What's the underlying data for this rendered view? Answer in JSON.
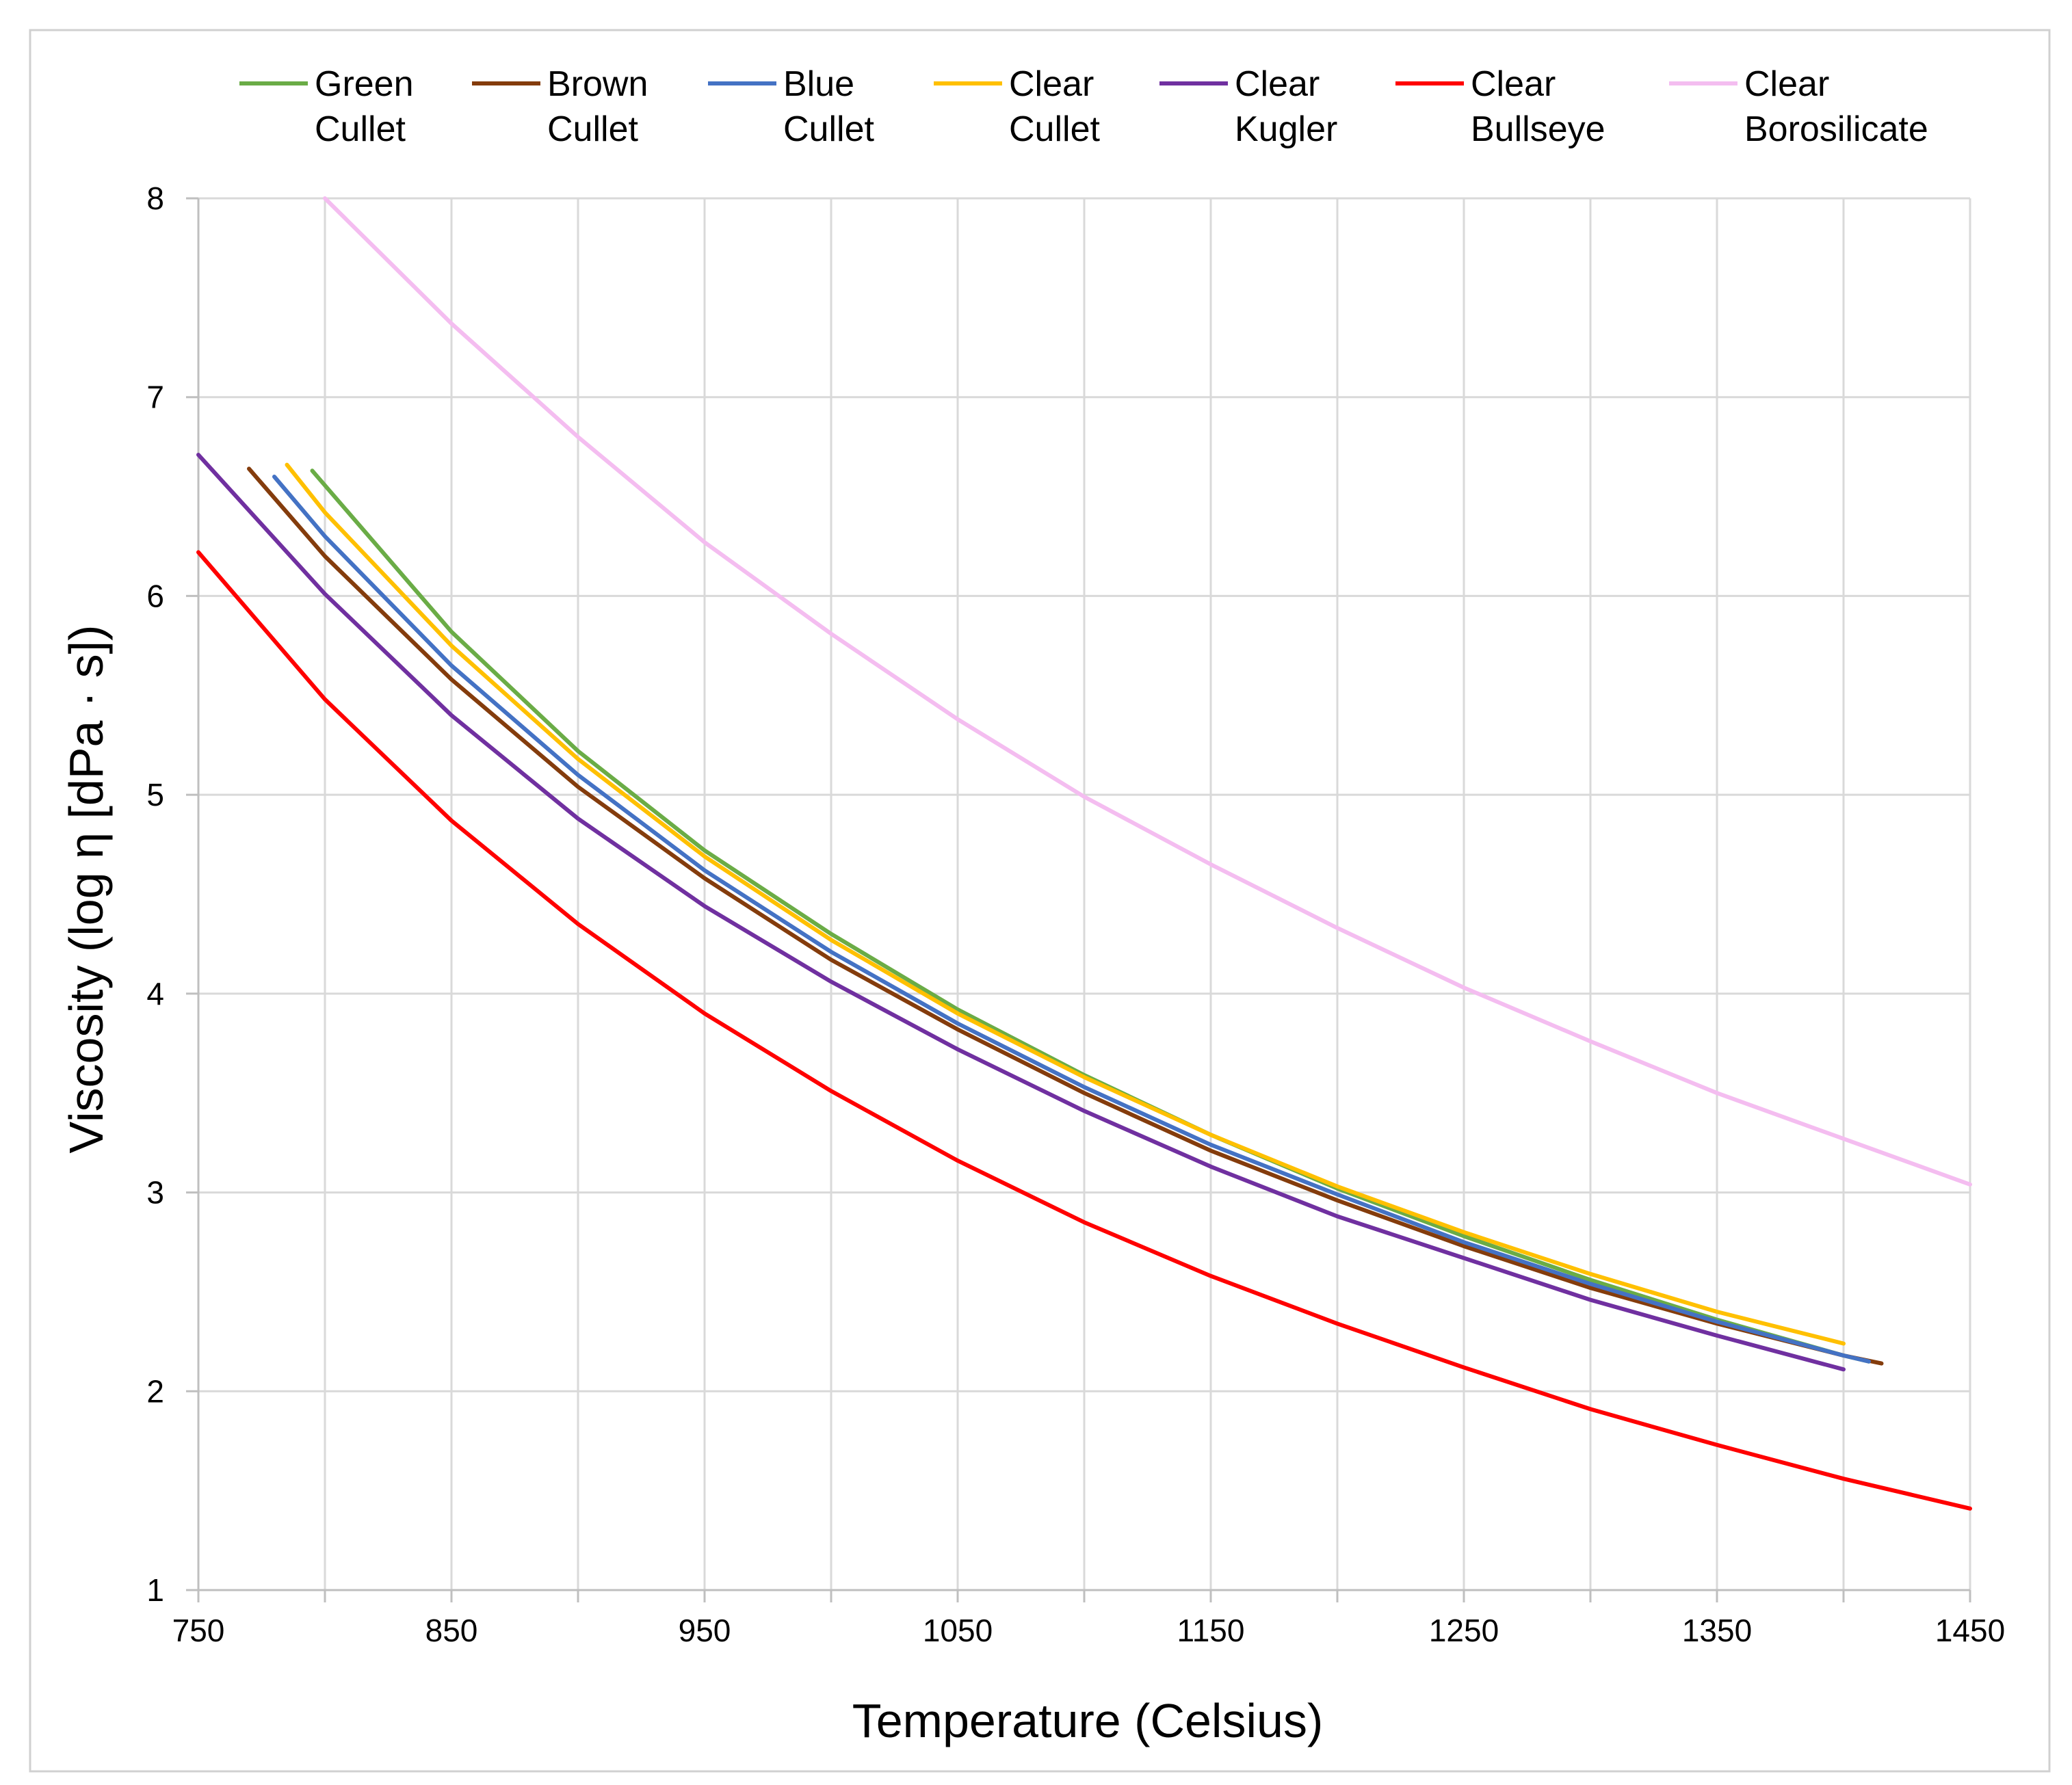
{
  "chart_data": {
    "type": "line",
    "title": "",
    "xlabel": "Temperature (Celsius)",
    "ylabel": "Viscosity (log η [dPa · s])",
    "xlim": [
      750,
      1450
    ],
    "ylim": [
      1,
      8
    ],
    "x_ticks": [
      "750",
      "850",
      "950",
      "1050",
      "1150",
      "1250",
      "1350",
      "1450"
    ],
    "x_tick_values": [
      750,
      850,
      950,
      1050,
      1150,
      1250,
      1350,
      1450
    ],
    "x_minor_gridlines": [
      800,
      900,
      1000,
      1100,
      1200,
      1300,
      1400
    ],
    "y_ticks": [
      "1",
      "2",
      "3",
      "4",
      "5",
      "6",
      "7",
      "8"
    ],
    "y_tick_values": [
      1,
      2,
      3,
      4,
      5,
      6,
      7,
      8
    ],
    "grid": true,
    "legend_position": "top",
    "series": [
      {
        "name": "Green Cullet",
        "label_lines": [
          "Green",
          "Cullet"
        ],
        "color": "#6aac46",
        "x": [
          795,
          850,
          900,
          950,
          1000,
          1050,
          1100,
          1150,
          1200,
          1250,
          1300,
          1350,
          1400,
          1410
        ],
        "y": [
          6.63,
          5.82,
          5.22,
          4.72,
          4.3,
          3.92,
          3.59,
          3.29,
          3.02,
          2.78,
          2.56,
          2.36,
          2.18,
          2.15
        ]
      },
      {
        "name": "Brown Cullet",
        "label_lines": [
          "Brown",
          "Cullet"
        ],
        "color": "#843c0c",
        "x": [
          770,
          800,
          850,
          900,
          950,
          1000,
          1050,
          1100,
          1150,
          1200,
          1250,
          1300,
          1350,
          1400,
          1415
        ],
        "y": [
          6.64,
          6.2,
          5.58,
          5.04,
          4.58,
          4.17,
          3.82,
          3.5,
          3.21,
          2.96,
          2.73,
          2.52,
          2.34,
          2.18,
          2.14
        ]
      },
      {
        "name": "Blue Cullet",
        "label_lines": [
          "Blue",
          "Cullet"
        ],
        "color": "#4472c4",
        "x": [
          780,
          800,
          850,
          900,
          950,
          1000,
          1050,
          1100,
          1150,
          1200,
          1250,
          1300,
          1350,
          1400,
          1410
        ],
        "y": [
          6.6,
          6.3,
          5.65,
          5.1,
          4.62,
          4.21,
          3.85,
          3.53,
          3.24,
          2.99,
          2.75,
          2.54,
          2.35,
          2.18,
          2.15
        ]
      },
      {
        "name": "Clear Cullet",
        "label_lines": [
          "Clear",
          "Cullet"
        ],
        "color": "#ffc000",
        "x": [
          785,
          800,
          850,
          900,
          950,
          1000,
          1050,
          1100,
          1150,
          1200,
          1250,
          1300,
          1350,
          1400
        ],
        "y": [
          6.66,
          6.42,
          5.75,
          5.18,
          4.69,
          4.27,
          3.9,
          3.58,
          3.29,
          3.03,
          2.8,
          2.59,
          2.4,
          2.24
        ]
      },
      {
        "name": "Clear Kugler",
        "label_lines": [
          "Clear",
          "Kugler"
        ],
        "color": "#7030a0",
        "x": [
          750,
          800,
          850,
          900,
          950,
          1000,
          1050,
          1100,
          1150,
          1200,
          1250,
          1300,
          1350,
          1400
        ],
        "y": [
          6.71,
          6.01,
          5.4,
          4.88,
          4.44,
          4.06,
          3.72,
          3.41,
          3.13,
          2.88,
          2.67,
          2.46,
          2.28,
          2.11
        ]
      },
      {
        "name": "Clear Bullseye",
        "label_lines": [
          "Clear",
          "Bullseye"
        ],
        "color": "#ff0000",
        "x": [
          750,
          800,
          850,
          900,
          950,
          1000,
          1050,
          1100,
          1150,
          1200,
          1250,
          1300,
          1350,
          1400,
          1450
        ],
        "y": [
          6.22,
          5.48,
          4.87,
          4.35,
          3.9,
          3.51,
          3.16,
          2.85,
          2.58,
          2.34,
          2.12,
          1.91,
          1.73,
          1.56,
          1.41
        ]
      },
      {
        "name": "Clear Borosilicate",
        "label_lines": [
          "Clear",
          "Borosilicate"
        ],
        "color": "#f4bdf0",
        "x": [
          800,
          850,
          900,
          950,
          1000,
          1050,
          1100,
          1150,
          1200,
          1250,
          1300,
          1350,
          1400,
          1450
        ],
        "y": [
          8.0,
          7.37,
          6.8,
          6.27,
          5.81,
          5.38,
          4.99,
          4.65,
          4.33,
          4.03,
          3.76,
          3.5,
          3.27,
          3.04
        ]
      }
    ]
  }
}
